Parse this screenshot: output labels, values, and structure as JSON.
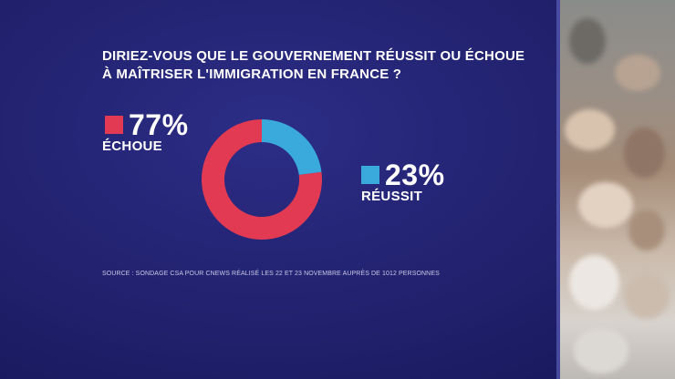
{
  "question": {
    "line1": "DIRIEZ-VOUS QUE LE GOUVERNEMENT RÉUSSIT OU ÉCHOUE",
    "line2": "À MAÎTRISER L'IMMIGRATION EN FRANCE ?"
  },
  "source": "SOURCE : SONDAGE CSA POUR CNEWS RÉALISÉ LES 22 ET 23 NOVEMBRE AUPRÈS DE 1012 PERSONNES",
  "colors": {
    "echoue": "#e13a52",
    "reussit": "#3aa9dc"
  },
  "chart_data": {
    "type": "pie",
    "title": "DIRIEZ-VOUS QUE LE GOUVERNEMENT RÉUSSIT OU ÉCHOUE À MAÎTRISER L'IMMIGRATION EN FRANCE ?",
    "slices": [
      {
        "label": "ÉCHOUE",
        "value": 77,
        "display": "77%",
        "color": "#e13a52"
      },
      {
        "label": "RÉUSSIT",
        "value": 23,
        "display": "23%",
        "color": "#3aa9dc"
      }
    ]
  }
}
